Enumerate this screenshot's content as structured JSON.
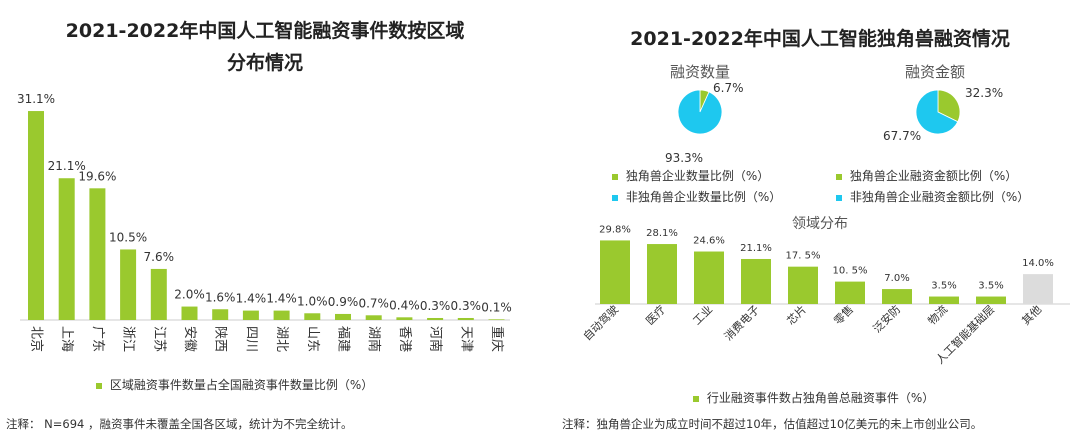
{
  "left_chart": {
    "title_line1": "2021-2022年中国人工智能融资事件数按区域",
    "title_line2": "分布情况",
    "legend": "区域融资事件数量占全国融资事件数量比例（%）",
    "note": "注释：  N=694 ，融资事件未覆盖全国各区域，统计为不完全统计。"
  },
  "right_chart": {
    "title": "2021-2022年中国人工智能独角兽融资情况",
    "pie1_title": "融资数量",
    "pie2_title": "融资金额",
    "legend1": "独角兽企业数量比例（%）",
    "legend2": "非独角兽企业数量比例（%）",
    "legend3": "独角兽企业融资金额比例（%）",
    "legend4": "非独角兽企业融资金额比例（%）",
    "bar_title": "领域分布",
    "bar_legend": "行业融资事件数占独角兽总融资事件（%）",
    "note": "注释：独角兽企业为成立时间不超过10年，估值超过10亿美元的未上市创业公司。"
  },
  "chart_data": [
    {
      "type": "bar",
      "title": "2021-2022年中国人工智能融资事件数按区域分布情况",
      "categories": [
        "北京",
        "上海",
        "广东",
        "浙江",
        "江苏",
        "安徽",
        "陕西",
        "四川",
        "湖北",
        "山东",
        "福建",
        "湖南",
        "香港",
        "河南",
        "天津",
        "重庆"
      ],
      "values": [
        31.1,
        21.1,
        19.6,
        10.5,
        7.6,
        2.0,
        1.6,
        1.4,
        1.4,
        1.0,
        0.9,
        0.7,
        0.4,
        0.3,
        0.3,
        0.1
      ],
      "labels": [
        "31.1%",
        "21.1%",
        "19.6%",
        "10.5%",
        "7.6%",
        "2.0%",
        "1.6%",
        "1.4%",
        "1.4%",
        "1.0%",
        "0.9%",
        "0.7%",
        "0.4%",
        "0.3%",
        "0.3%",
        "0.1%"
      ],
      "series_name": "区域融资事件数量占全国融资事件数量比例（%）",
      "ylim": [
        0,
        32
      ],
      "color": "#9ac92e"
    },
    {
      "type": "pie",
      "title": "融资数量",
      "slices": [
        {
          "name": "独角兽企业数量比例（%）",
          "value": 6.7,
          "label": "6.7%",
          "color": "#9ac92e"
        },
        {
          "name": "非独角兽企业数量比例（%）",
          "value": 93.3,
          "label": "93.3%",
          "color": "#1ec8ef"
        }
      ]
    },
    {
      "type": "pie",
      "title": "融资金额",
      "slices": [
        {
          "name": "独角兽企业融资金额比例（%）",
          "value": 32.3,
          "label": "32.3%",
          "color": "#9ac92e"
        },
        {
          "name": "非独角兽企业融资金额比例（%）",
          "value": 67.7,
          "label": "67.7%",
          "color": "#1ec8ef"
        }
      ]
    },
    {
      "type": "bar",
      "title": "领域分布",
      "categories": [
        "自动驾驶",
        "医疗",
        "工业",
        "消费电子",
        "芯片",
        "零售",
        "泛安防",
        "物流",
        "人工智能基础层",
        "其他"
      ],
      "values": [
        29.8,
        28.1,
        24.6,
        21.1,
        17.5,
        10.5,
        7.0,
        3.5,
        3.5,
        14.0
      ],
      "labels": [
        "29.8%",
        "28.1%",
        "24.6%",
        "21.1%",
        "17. 5%",
        "10. 5%",
        "7.0%",
        "3.5%",
        "3.5%",
        "14.0%"
      ],
      "series_name": "行业融资事件数占独角兽总融资事件（%）",
      "ylim": [
        0,
        30
      ],
      "colors": [
        "#9ac92e",
        "#9ac92e",
        "#9ac92e",
        "#9ac92e",
        "#9ac92e",
        "#9ac92e",
        "#9ac92e",
        "#9ac92e",
        "#9ac92e",
        "#dcdcdc"
      ]
    }
  ]
}
